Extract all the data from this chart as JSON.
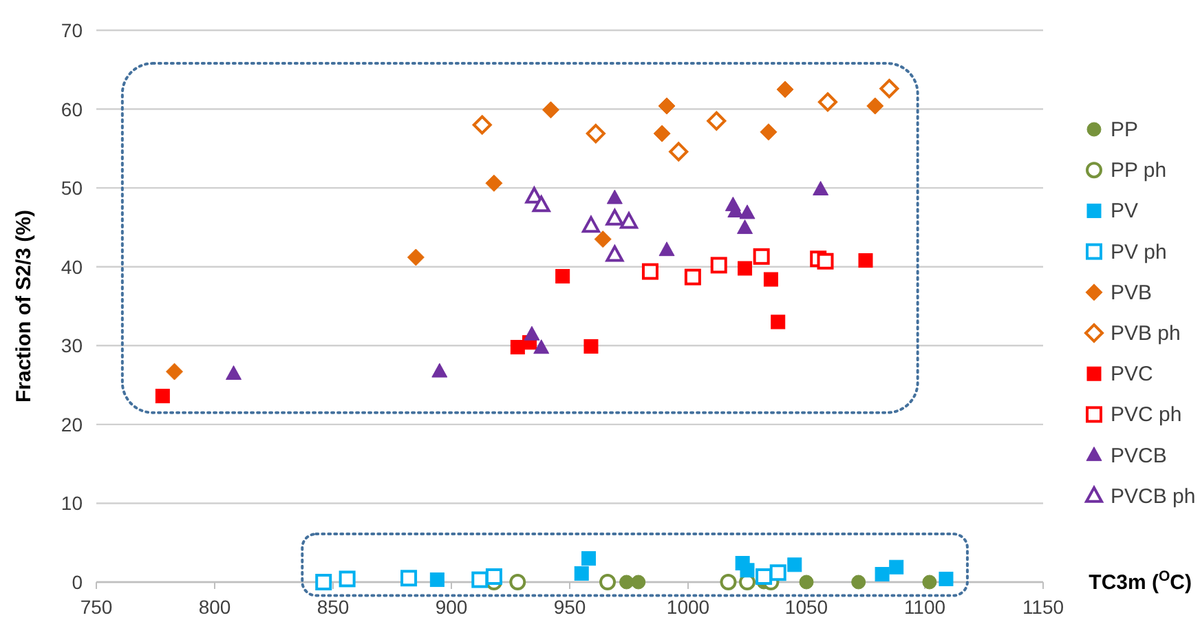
{
  "chart_data": {
    "type": "scatter",
    "xlabel": "TC3m ($^{O}$C)",
    "ylabel": "Fraction of S2/3 (%)",
    "xlim": [
      750,
      1150
    ],
    "xticks": [
      750,
      800,
      850,
      900,
      950,
      1000,
      1050,
      1100,
      1150
    ],
    "ylim": [
      0,
      70
    ],
    "yticks": [
      0,
      10,
      20,
      30,
      40,
      50,
      60,
      70
    ],
    "grid": "y",
    "legend": "right",
    "series": [
      {
        "name": "PP",
        "color": "#77933c",
        "marker": "circle",
        "x": [
          974,
          979,
          1032,
          1050,
          1072,
          1102
        ],
        "values": [
          0,
          0,
          0,
          0,
          0,
          0
        ]
      },
      {
        "name": "PP ph",
        "color": "#77933c",
        "marker": "circle-open",
        "x": [
          918,
          928,
          966,
          1017,
          1025,
          1035
        ],
        "values": [
          0,
          0,
          0,
          0,
          0,
          0
        ]
      },
      {
        "name": "PV",
        "color": "#00b0f0",
        "marker": "square",
        "x": [
          894,
          955,
          958,
          1023,
          1025,
          1045,
          1082,
          1088,
          1109
        ],
        "values": [
          0.3,
          1.1,
          3,
          2.4,
          1.5,
          2.2,
          1,
          1.9,
          0.4
        ]
      },
      {
        "name": "PV ph",
        "color": "#00b0f0",
        "marker": "square-open",
        "x": [
          846,
          856,
          882,
          912,
          918,
          1032,
          1038
        ],
        "values": [
          0,
          0.4,
          0.5,
          0.3,
          0.7,
          0.7,
          1.2
        ]
      },
      {
        "name": "PVB",
        "color": "#e46c0a",
        "marker": "diamond",
        "x": [
          783,
          885,
          918,
          942,
          964,
          989,
          991,
          1034,
          1041,
          1079
        ],
        "values": [
          26.7,
          41.2,
          50.6,
          59.9,
          43.5,
          56.9,
          60.4,
          57.1,
          62.5,
          60.4
        ]
      },
      {
        "name": "PVB ph",
        "color": "#e46c0a",
        "marker": "diamond-open",
        "x": [
          913,
          961,
          996,
          1012,
          1059,
          1085
        ],
        "values": [
          58,
          56.9,
          54.6,
          58.5,
          60.9,
          62.6
        ]
      },
      {
        "name": "PVC",
        "color": "#ff0000",
        "marker": "square",
        "x": [
          778,
          928,
          933,
          947,
          959,
          1024,
          1035,
          1038,
          1075
        ],
        "values": [
          23.6,
          29.8,
          30.4,
          38.8,
          29.9,
          39.8,
          38.4,
          33,
          40.8
        ]
      },
      {
        "name": "PVC ph",
        "color": "#ff0000",
        "marker": "square-open",
        "x": [
          984,
          1002,
          1013,
          1031,
          1055,
          1058
        ],
        "values": [
          39.4,
          38.7,
          40.2,
          41.3,
          41,
          40.7
        ]
      },
      {
        "name": "PVCB",
        "color": "#7030a0",
        "marker": "triangle",
        "x": [
          808,
          895,
          934,
          938,
          969,
          991,
          1019,
          1020,
          1025,
          1024,
          1056
        ],
        "values": [
          26.4,
          26.7,
          31.4,
          29.7,
          48.7,
          42.1,
          47.8,
          47,
          46.8,
          44.9,
          49.8
        ]
      },
      {
        "name": "PVCB ph",
        "color": "#7030a0",
        "marker": "triangle-open",
        "x": [
          935,
          938,
          959,
          969,
          975,
          969
        ],
        "values": [
          48.9,
          47.8,
          45.2,
          46.1,
          45.7,
          41.5
        ]
      }
    ]
  }
}
